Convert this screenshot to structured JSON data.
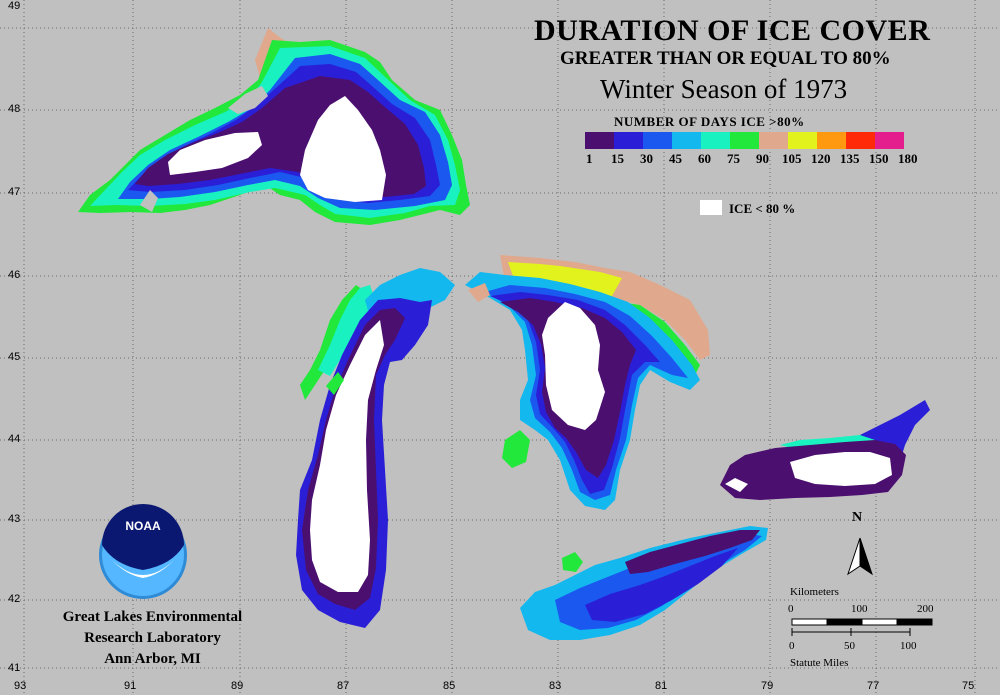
{
  "title": {
    "line1": "DURATION OF ICE COVER",
    "line2": "GREATER THAN OR EQUAL TO 80%",
    "line3": "Winter Season of 1973"
  },
  "legend": {
    "title": "NUMBER OF DAYS ICE >80%",
    "colors": [
      "#4b0f70",
      "#2a1fd6",
      "#1a58f0",
      "#13b8ef",
      "#19f2c0",
      "#21e83a",
      "#e0a88c",
      "#e2f21c",
      "#ff9a10",
      "#ff2a08",
      "#e51e8e"
    ],
    "ticks": [
      "1",
      "15",
      "30",
      "45",
      "60",
      "75",
      "90",
      "105",
      "120",
      "135",
      "150",
      "180"
    ],
    "ice_label": "ICE < 80 %"
  },
  "axes": {
    "latitudes": [
      "49",
      "48",
      "47",
      "46",
      "45",
      "44",
      "43",
      "42",
      "41"
    ],
    "longitudes": [
      "93",
      "91",
      "89",
      "87",
      "85",
      "83",
      "81",
      "79",
      "77",
      "75"
    ]
  },
  "logo": {
    "text": "NOAA"
  },
  "organization": {
    "line1": "Great Lakes Environmental",
    "line2": "Research Laboratory",
    "line3": "Ann Arbor, MI"
  },
  "north_arrow": {
    "label": "N"
  },
  "scale": {
    "km_label": "Kilometers",
    "km_ticks": [
      "0",
      "100",
      "200"
    ],
    "mi_ticks": [
      "0",
      "50",
      "100"
    ],
    "mi_label": "Statute Miles"
  }
}
